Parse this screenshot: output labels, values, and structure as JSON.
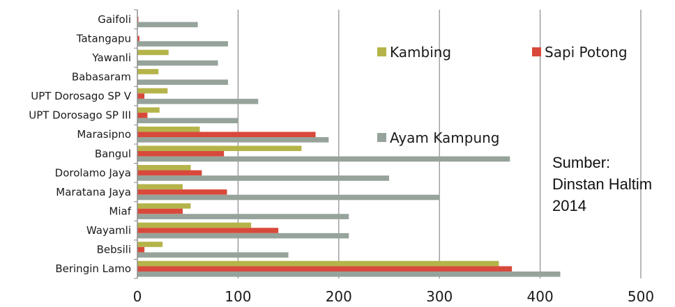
{
  "chart_data": {
    "type": "bar",
    "orientation": "horizontal",
    "title": "",
    "xlabel": "",
    "ylabel": "",
    "xlim": [
      0,
      500
    ],
    "x_ticks": [
      0,
      100,
      200,
      300,
      400,
      500
    ],
    "grid": true,
    "legend_position": "inside-top-right",
    "categories": [
      "Gaifoli",
      "Tatangapu",
      "Yawanli",
      "Babasaram",
      "UPT Dorosago SP V",
      "UPT Dorosago SP III",
      "Marasipno",
      "Bangul",
      "Dorolamo Jaya",
      "Maratana Jaya",
      "Miaf",
      "Wayamli",
      "Bebsili",
      "Beringin Lamo"
    ],
    "series": [
      {
        "name": "Kambing",
        "color": "#b5b44a",
        "values": [
          0,
          0,
          31,
          21,
          30,
          22,
          62,
          163,
          53,
          45,
          53,
          113,
          25,
          359
        ]
      },
      {
        "name": "Sapi Potong",
        "color": "#d8493b",
        "values": [
          1,
          2,
          0,
          0,
          7,
          10,
          177,
          86,
          64,
          89,
          45,
          140,
          7,
          372
        ]
      },
      {
        "name": "Ayam Kampung",
        "color": "#96a39b",
        "values": [
          60,
          90,
          80,
          90,
          120,
          100,
          190,
          370,
          250,
          300,
          210,
          210,
          150,
          420
        ]
      }
    ]
  },
  "source_note": {
    "line1": "Sumber:",
    "line2": "Dinstan Haltim",
    "line3": "2014"
  }
}
